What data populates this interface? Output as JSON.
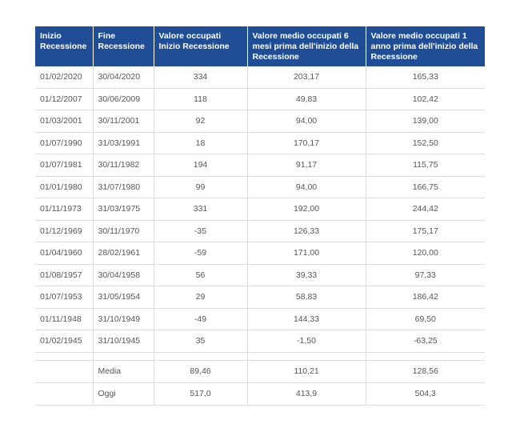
{
  "headers": [
    "Inizio Recessione",
    "Fine Recessione",
    "Valore occupati Inizio Recessione",
    "Valore medio occupati  6 mesi prima dell'inizio della Recessione",
    "Valore medio occupati  1 anno prima dell'inizio della Recessione"
  ],
  "rows": [
    [
      "01/02/2020",
      "30/04/2020",
      "334",
      "203,17",
      "165,33"
    ],
    [
      "01/12/2007",
      "30/06/2009",
      "118",
      "49,83",
      "102,42"
    ],
    [
      "01/03/2001",
      "30/11/2001",
      "92",
      "94,00",
      "139,00"
    ],
    [
      "01/07/1990",
      "31/03/1991",
      "18",
      "170,17",
      "152,50"
    ],
    [
      "01/07/1981",
      "30/11/1982",
      "194",
      "91,17",
      "115,75"
    ],
    [
      "01/01/1980",
      "31/07/1980",
      "99",
      "94,00",
      "166,75"
    ],
    [
      "01/11/1973",
      "31/03/1975",
      "331",
      "192,00",
      "244,42"
    ],
    [
      "01/12/1969",
      "30/11/1970",
      "-35",
      "126,33",
      "175,17"
    ],
    [
      "01/04/1960",
      "28/02/1961",
      "-59",
      "171,00",
      "120,00"
    ],
    [
      "01/08/1957",
      "30/04/1958",
      "56",
      "39,33",
      "97,33"
    ],
    [
      "01/07/1953",
      "31/05/1954",
      "29",
      "58,83",
      "186,42"
    ],
    [
      "01/11/1948",
      "31/10/1949",
      "-49",
      "144,33",
      "69,50"
    ],
    [
      "01/02/1945",
      "31/10/1945",
      "35",
      "-1,50",
      "-63,25"
    ]
  ],
  "summary": [
    [
      "",
      "Media",
      "89,46",
      "110,21",
      "128,56"
    ],
    [
      "",
      "Oggi",
      "517,0",
      "413,9",
      "504,3"
    ]
  ],
  "colors": {
    "header_bg": "#1f4e96",
    "grid": "#dcdcdc"
  }
}
